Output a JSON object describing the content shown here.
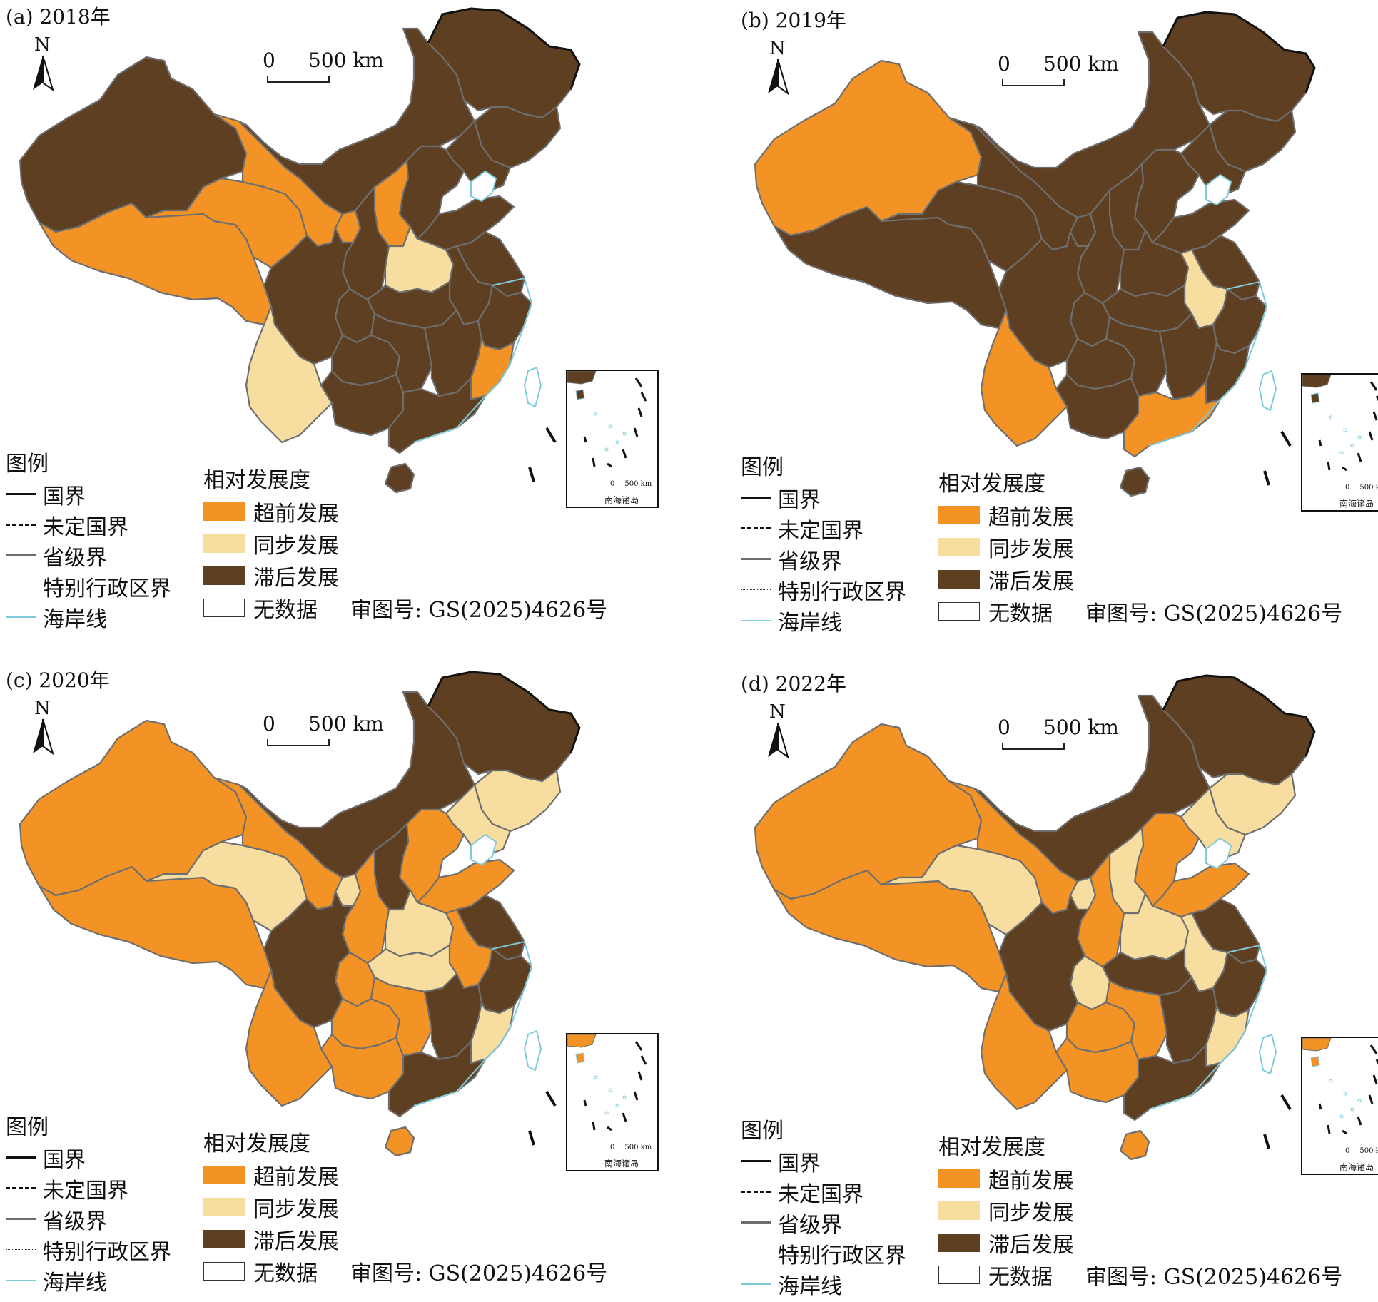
{
  "colors": {
    "advanced": "#F39325",
    "synchronous": "#F7DEA0",
    "lagging": "#5E3F22",
    "province_border": "#6E6E6E",
    "coastline": "#7FCBDB",
    "no_data": "#FFFFFF"
  },
  "panels": [
    {
      "title": "(a) 2018年",
      "status": {
        "xinjiang": "lagging",
        "tibet": "advanced",
        "qinghai": "advanced",
        "gansu": "advanced",
        "sichuan": "lagging",
        "yunnan": "synchronous",
        "guizhou": "lagging",
        "guangxi": "lagging",
        "guangdong": "lagging",
        "hainan": "lagging",
        "neimenggu": "lagging",
        "heilongjiang": "lagging",
        "jilin": "lagging",
        "liaoning": "lagging",
        "hebei": "lagging",
        "shanxi": "advanced",
        "shaanxi": "lagging",
        "ningxia": "advanced",
        "henan": "synchronous",
        "shandong": "lagging",
        "hubei": "lagging",
        "hunan": "lagging",
        "jiangxi": "lagging",
        "anhui": "lagging",
        "jiangsu": "lagging",
        "zhejiang": "lagging",
        "fujian": "advanced",
        "chongqing": "lagging",
        "taiwan": "no_data"
      }
    },
    {
      "title": "(b) 2019年",
      "status": {
        "xinjiang": "advanced",
        "tibet": "lagging",
        "qinghai": "lagging",
        "gansu": "lagging",
        "sichuan": "lagging",
        "yunnan": "advanced",
        "guizhou": "lagging",
        "guangxi": "lagging",
        "guangdong": "advanced",
        "hainan": "lagging",
        "neimenggu": "lagging",
        "heilongjiang": "lagging",
        "jilin": "lagging",
        "liaoning": "lagging",
        "hebei": "lagging",
        "shanxi": "lagging",
        "shaanxi": "lagging",
        "ningxia": "lagging",
        "henan": "lagging",
        "shandong": "lagging",
        "hubei": "lagging",
        "hunan": "lagging",
        "jiangxi": "lagging",
        "anhui": "synchronous",
        "jiangsu": "lagging",
        "zhejiang": "lagging",
        "fujian": "lagging",
        "chongqing": "lagging",
        "taiwan": "no_data"
      }
    },
    {
      "title": "(c) 2020年",
      "status": {
        "xinjiang": "advanced",
        "tibet": "advanced",
        "qinghai": "synchronous",
        "gansu": "advanced",
        "sichuan": "lagging",
        "yunnan": "advanced",
        "guizhou": "advanced",
        "guangxi": "advanced",
        "guangdong": "lagging",
        "hainan": "advanced",
        "neimenggu": "lagging",
        "heilongjiang": "lagging",
        "jilin": "synchronous",
        "liaoning": "synchronous",
        "hebei": "advanced",
        "shanxi": "lagging",
        "shaanxi": "advanced",
        "ningxia": "synchronous",
        "henan": "synchronous",
        "shandong": "advanced",
        "hubei": "synchronous",
        "hunan": "advanced",
        "jiangxi": "lagging",
        "anhui": "advanced",
        "jiangsu": "lagging",
        "zhejiang": "lagging",
        "fujian": "synchronous",
        "chongqing": "advanced",
        "taiwan": "no_data"
      }
    },
    {
      "title": "(d) 2022年",
      "status": {
        "xinjiang": "advanced",
        "tibet": "advanced",
        "qinghai": "synchronous",
        "gansu": "advanced",
        "sichuan": "lagging",
        "yunnan": "advanced",
        "guizhou": "advanced",
        "guangxi": "advanced",
        "guangdong": "lagging",
        "hainan": "advanced",
        "neimenggu": "lagging",
        "heilongjiang": "lagging",
        "jilin": "synchronous",
        "liaoning": "synchronous",
        "hebei": "advanced",
        "shanxi": "synchronous",
        "shaanxi": "advanced",
        "ningxia": "synchronous",
        "henan": "synchronous",
        "shandong": "advanced",
        "hubei": "lagging",
        "hunan": "advanced",
        "jiangxi": "lagging",
        "anhui": "synchronous",
        "jiangsu": "lagging",
        "zhejiang": "lagging",
        "fujian": "synchronous",
        "chongqing": "synchronous",
        "taiwan": "no_data"
      }
    }
  ],
  "north_label": "N",
  "scale": {
    "zero": "0",
    "label": "500 km"
  },
  "inset": {
    "label": "南海诸岛",
    "scale_zero": "0",
    "scale_label": "500 km"
  },
  "legend": {
    "title": "图例",
    "lines": [
      {
        "label": "国界",
        "style": "solid-thick"
      },
      {
        "label": "未定国界",
        "style": "dashed-thick"
      },
      {
        "label": "省级界",
        "style": "solid-gray"
      },
      {
        "label": "特别行政区界",
        "style": "dotted-thin"
      },
      {
        "label": "海岸线",
        "style": "coast"
      }
    ]
  },
  "relative_legend": {
    "title": "相对发展度",
    "items": [
      {
        "key": "advanced",
        "label": "超前发展"
      },
      {
        "key": "synchronous",
        "label": "同步发展"
      },
      {
        "key": "lagging",
        "label": "滞后发展"
      },
      {
        "key": "no_data",
        "label": "无数据"
      }
    ],
    "approval": "审图号: GS(2025)4626号"
  }
}
